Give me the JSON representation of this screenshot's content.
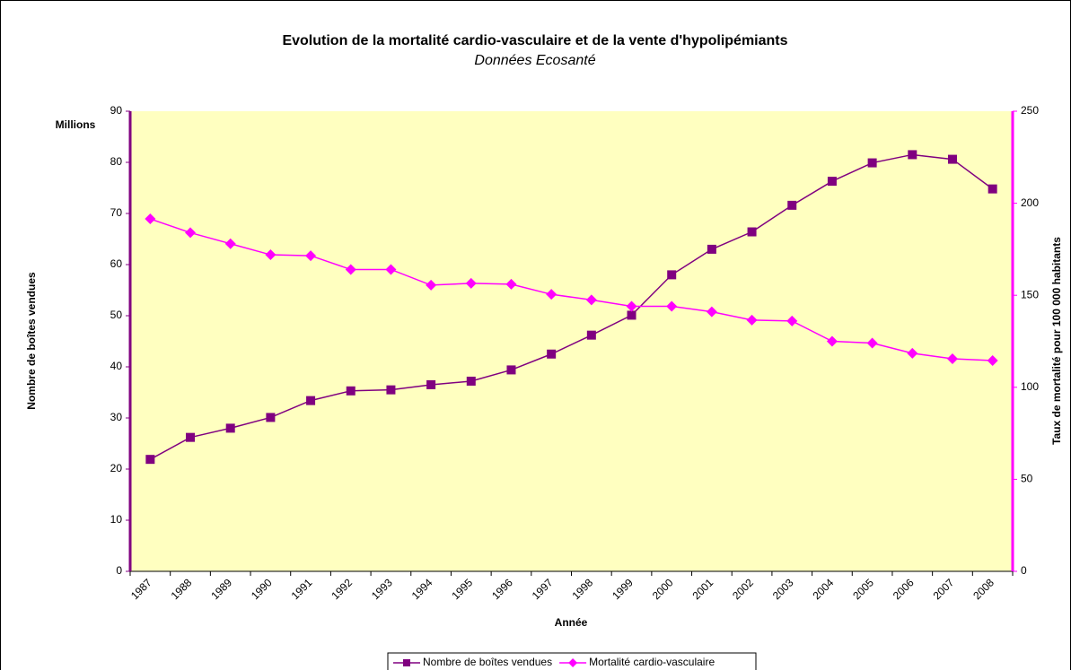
{
  "chart_data": {
    "type": "line",
    "title": "Evolution de la mortalité cardio-vasculaire et de la vente d'hypolipémiants",
    "subtitle": "Données Ecosanté",
    "x_label": "Année",
    "y_label": "Nombre de boîtes vendues",
    "y_unit": "Millions",
    "y2_label": "Taux de mortalité pour 100 000 habitants",
    "categories": [
      "1987",
      "1988",
      "1989",
      "1990",
      "1991",
      "1992",
      "1993",
      "1994",
      "1995",
      "1996",
      "1997",
      "1998",
      "1999",
      "2000",
      "2001",
      "2002",
      "2003",
      "2004",
      "2005",
      "2006",
      "2007",
      "2008"
    ],
    "series": [
      {
        "name": "Nombre de boîtes vendues",
        "color": "#800080",
        "marker": "square",
        "values": [
          21.9,
          26.2,
          28,
          30.1,
          33.4,
          35.3,
          35.5,
          36.5,
          37.2,
          39.4,
          42.5,
          46.2,
          50.1,
          58,
          63,
          66.4,
          71.6,
          76.3,
          79.9,
          81.5,
          80.6,
          74.8
        ]
      },
      {
        "name": "Mortalité cardio-vasculaire",
        "color": "#ff00ff",
        "marker": "diamond",
        "axis": "y2",
        "values": [
          191.5,
          184,
          178,
          172,
          171.5,
          164,
          164,
          155.5,
          156.5,
          156,
          150.5,
          147.5,
          144,
          144,
          141,
          136.5,
          136,
          125,
          124,
          118.5,
          115.5,
          114.5
        ]
      }
    ],
    "ylim": [
      0,
      90
    ],
    "yticks": [
      0,
      10,
      20,
      30,
      40,
      50,
      60,
      70,
      80,
      90
    ],
    "y2lim": [
      0,
      250
    ],
    "y2ticks": [
      0,
      50,
      100,
      150,
      200,
      250
    ],
    "legend": "bottom"
  }
}
